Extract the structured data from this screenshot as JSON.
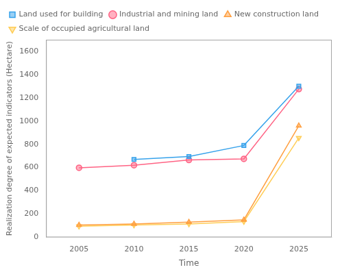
{
  "chart_data": {
    "type": "line",
    "x": [
      2005,
      2010,
      2015,
      2020,
      2025
    ],
    "series": [
      {
        "name": "Land used for building",
        "marker": "square",
        "values": [
          null,
          670,
          695,
          790,
          1300
        ]
      },
      {
        "name": "Industrial and mining land",
        "marker": "circle",
        "values": [
          598,
          620,
          665,
          675,
          1275
        ]
      },
      {
        "name": "New construction land",
        "marker": "triangle",
        "values": [
          105,
          115,
          130,
          150,
          960
        ]
      },
      {
        "name": "Scale of occupied agricultural land",
        "marker": "triangle-down",
        "values": [
          95,
          105,
          115,
          135,
          855
        ]
      }
    ],
    "xlabel": "Time",
    "ylabel": "Realization degree of expected indicators (Hectare)",
    "xlim": [
      2002,
      2028
    ],
    "xticks": [
      2005,
      2010,
      2015,
      2020,
      2025
    ],
    "ylim": [
      0,
      1700
    ],
    "yticks": [
      0,
      200,
      400,
      600,
      800,
      1000,
      1200,
      1400,
      1600
    ],
    "grid": false,
    "legend": "upper left"
  }
}
